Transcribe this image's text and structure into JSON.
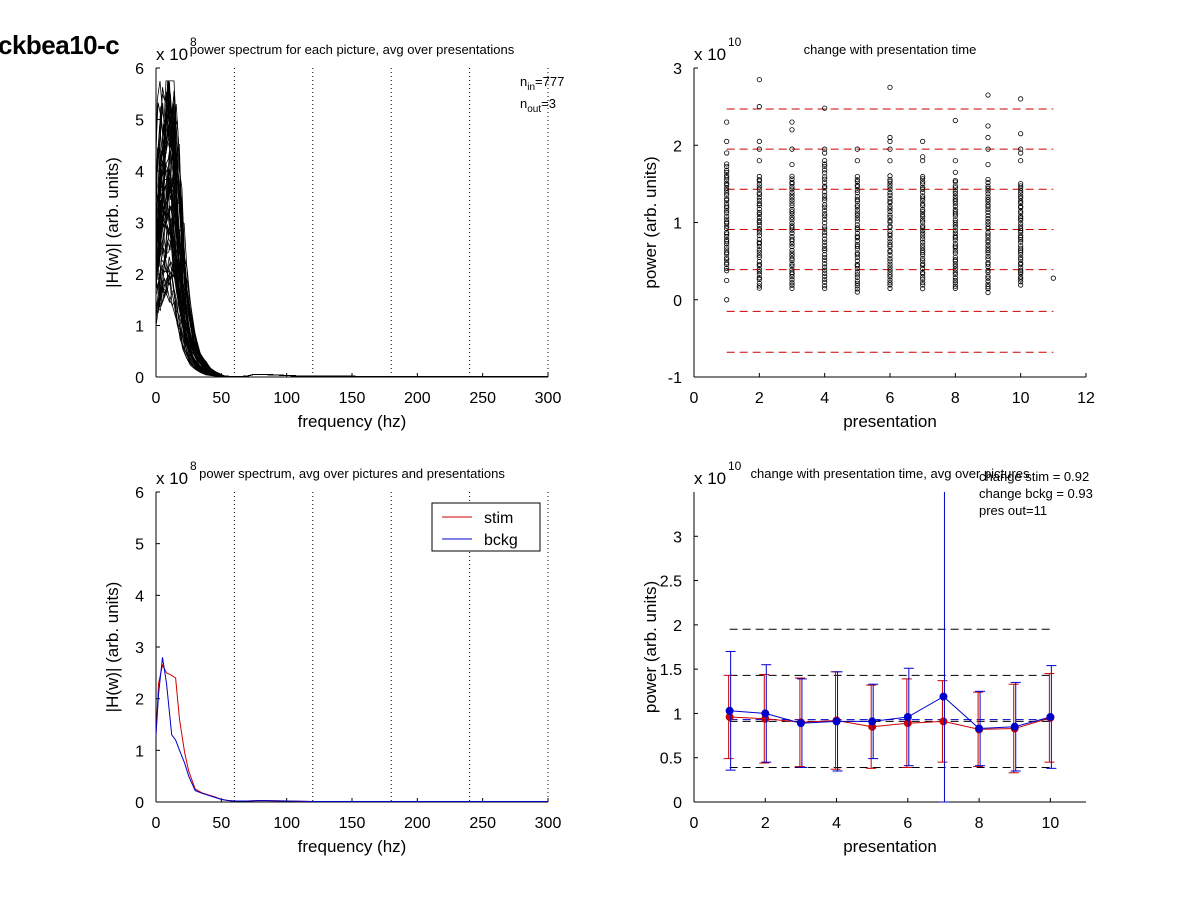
{
  "figure_title": "ckbea10-c",
  "chart_data": [
    {
      "id": "p1",
      "type": "line",
      "title": "power spectrum for each picture, avg over presentations",
      "xlabel": "frequency (hz)",
      "ylabel": "|H(w)| (arb. units)",
      "exponent": "8",
      "xlim": [
        0,
        300
      ],
      "ylim": [
        0,
        6
      ],
      "xticks": [
        0,
        50,
        100,
        150,
        200,
        250,
        300
      ],
      "yticks": [
        0,
        1,
        2,
        3,
        4,
        5,
        6
      ],
      "vlines": [
        60,
        120,
        180,
        240,
        300
      ],
      "annotations": {
        "n_in": "777",
        "n_out": "3"
      },
      "series_color": "#000000",
      "x": [
        0,
        2,
        4,
        6,
        8,
        10,
        12,
        14,
        16,
        18,
        20,
        22,
        25,
        28,
        32,
        36,
        40,
        45,
        50,
        55,
        60,
        65,
        70,
        75,
        80,
        90,
        100,
        110,
        120,
        140,
        160,
        180,
        200,
        220,
        240,
        260,
        280,
        300
      ],
      "base_profile": [
        2.0,
        2.5,
        2.9,
        3.2,
        3.4,
        3.5,
        3.3,
        3.0,
        2.6,
        2.1,
        1.6,
        1.2,
        0.8,
        0.5,
        0.3,
        0.18,
        0.1,
        0.05,
        0.02,
        0.01,
        0.01,
        0.01,
        0.02,
        0.05,
        0.05,
        0.04,
        0.03,
        0.02,
        0.02,
        0.015,
        0.01,
        0.01,
        0.01,
        0.005,
        0.005,
        0.005,
        0.005,
        0.005
      ]
    },
    {
      "id": "p2",
      "type": "scatter",
      "title": "change with presentation time",
      "xlabel": "presentation",
      "ylabel": "power (arb. units)",
      "exponent": "10",
      "xlim": [
        0,
        12
      ],
      "ylim": [
        -1,
        3
      ],
      "xticks": [
        0,
        2,
        4,
        6,
        8,
        10,
        12
      ],
      "yticks": [
        -1,
        0,
        1,
        2,
        3
      ],
      "hlines": [
        2.47,
        1.95,
        1.43,
        0.91,
        0.39,
        -0.15,
        -0.68
      ],
      "hline_color": "#cc0000",
      "marker": "open-circle",
      "columns": [
        {
          "x": 1,
          "min": 0.38,
          "max": 1.75,
          "outliers": [
            0.0,
            0.25,
            1.9,
            2.05,
            2.3
          ]
        },
        {
          "x": 2,
          "min": 0.15,
          "max": 1.6,
          "outliers": [
            1.8,
            1.95,
            2.05,
            2.5,
            2.85
          ]
        },
        {
          "x": 3,
          "min": 0.15,
          "max": 1.6,
          "outliers": [
            1.75,
            1.95,
            2.2,
            2.3
          ]
        },
        {
          "x": 4,
          "min": 0.15,
          "max": 1.8,
          "outliers": [
            1.9,
            1.95,
            2.48
          ]
        },
        {
          "x": 5,
          "min": 0.1,
          "max": 1.6,
          "outliers": [
            1.8,
            1.95
          ]
        },
        {
          "x": 6,
          "min": 0.15,
          "max": 1.6,
          "outliers": [
            1.8,
            1.95,
            2.05,
            2.1,
            2.75
          ]
        },
        {
          "x": 7,
          "min": 0.15,
          "max": 1.6,
          "outliers": [
            1.8,
            1.85,
            2.05
          ]
        },
        {
          "x": 8,
          "min": 0.15,
          "max": 1.55,
          "outliers": [
            1.65,
            1.8,
            2.32
          ]
        },
        {
          "x": 9,
          "min": 0.1,
          "max": 1.55,
          "outliers": [
            1.75,
            1.95,
            2.1,
            2.25,
            2.65
          ]
        },
        {
          "x": 10,
          "min": 0.2,
          "max": 1.5,
          "outliers": [
            1.8,
            1.9,
            1.95,
            2.15,
            2.6
          ]
        },
        {
          "x": 11,
          "min": 0.28,
          "max": 0.28,
          "outliers": []
        }
      ]
    },
    {
      "id": "p3",
      "type": "line",
      "title": "power spectrum, avg over pictures and presentations",
      "xlabel": "frequency (hz)",
      "ylabel": "|H(w)| (arb. units)",
      "exponent": "8",
      "xlim": [
        0,
        300
      ],
      "ylim": [
        0,
        6
      ],
      "xticks": [
        0,
        50,
        100,
        150,
        200,
        250,
        300
      ],
      "yticks": [
        0,
        1,
        2,
        3,
        4,
        5,
        6
      ],
      "vlines": [
        60,
        120,
        180,
        240,
        300
      ],
      "legend": [
        {
          "name": "stim",
          "color": "#cc0000"
        },
        {
          "name": "bckg",
          "color": "#0000cc"
        }
      ],
      "series": [
        {
          "name": "stim",
          "color": "#cc0000",
          "x": [
            0,
            2,
            5,
            8,
            12,
            15,
            18,
            22,
            25,
            30,
            35,
            40,
            45,
            50,
            55,
            60,
            70,
            80,
            100,
            120,
            150,
            200,
            250,
            300
          ],
          "values": [
            1.3,
            2.3,
            2.65,
            2.5,
            2.45,
            2.4,
            1.6,
            0.95,
            0.6,
            0.25,
            0.18,
            0.14,
            0.1,
            0.05,
            0.03,
            0.02,
            0.02,
            0.03,
            0.02,
            0.01,
            0.01,
            0.01,
            0.01,
            0.01
          ]
        },
        {
          "name": "bckg",
          "color": "#0000cc",
          "x": [
            0,
            2,
            5,
            8,
            12,
            15,
            18,
            22,
            25,
            30,
            35,
            40,
            45,
            50,
            55,
            60,
            70,
            80,
            100,
            120,
            150,
            200,
            250,
            300
          ],
          "values": [
            1.3,
            2.1,
            2.8,
            2.3,
            1.3,
            1.2,
            1.0,
            0.75,
            0.5,
            0.22,
            0.17,
            0.13,
            0.09,
            0.05,
            0.03,
            0.02,
            0.02,
            0.03,
            0.02,
            0.01,
            0.01,
            0.01,
            0.01,
            0.01
          ]
        }
      ]
    },
    {
      "id": "p4",
      "type": "line",
      "title": "change with presentation time, avg over pictures",
      "xlabel": "presentation",
      "ylabel": "power (arb. units)",
      "exponent": "10",
      "xlim": [
        0,
        11
      ],
      "ylim": [
        0,
        3.5
      ],
      "xticks": [
        0,
        2,
        4,
        6,
        8,
        10
      ],
      "yticks": [
        0,
        0.5,
        1,
        1.5,
        2,
        2.5,
        3
      ],
      "ytick_labels": [
        "0",
        "0.5",
        "1",
        "1.5",
        "2",
        "2.5",
        "3"
      ],
      "hlines_black": [
        1.95,
        1.43,
        0.91,
        0.39
      ],
      "hlines_blue": [
        0.93
      ],
      "annotations": [
        "change stim = 0.92",
        "change bckg = 0.93",
        "pres out=11"
      ],
      "series": [
        {
          "name": "stim",
          "color": "#cc0000",
          "x": [
            1,
            2,
            3,
            4,
            5,
            6,
            7,
            8,
            9,
            10
          ],
          "values": [
            0.96,
            0.94,
            0.9,
            0.92,
            0.85,
            0.89,
            0.91,
            0.82,
            0.83,
            0.95
          ],
          "err": [
            0.47,
            0.5,
            0.5,
            0.55,
            0.47,
            0.5,
            0.46,
            0.42,
            0.5,
            0.5
          ]
        },
        {
          "name": "bckg",
          "color": "#0000cc",
          "x": [
            1,
            2,
            3,
            4,
            5,
            6,
            7,
            8,
            9,
            10
          ],
          "values": [
            1.03,
            1.0,
            0.89,
            0.91,
            0.91,
            0.96,
            1.19,
            0.83,
            0.85,
            0.96
          ],
          "err": [
            0.67,
            0.55,
            0.5,
            0.56,
            0.42,
            0.55,
            3.0,
            0.42,
            0.5,
            0.58
          ]
        }
      ]
    }
  ]
}
